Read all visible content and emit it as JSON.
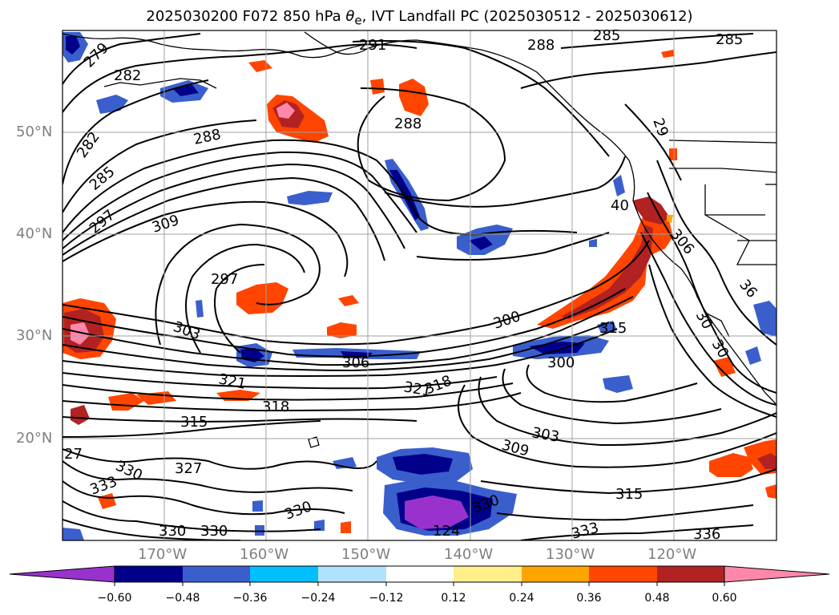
{
  "title": "2025030200 F072 850 hPa θe, IVT Landfall PC (2025030512 - 2025030612)",
  "title_parts": {
    "prefix": "2025030200 F072 850 hPa ",
    "symbol": "θ",
    "subscript": "e",
    "suffix": ", IVT Landfall PC (2025030512 - 2025030612)"
  },
  "map": {
    "projection": "PlateCarree",
    "extent": {
      "lon_min": -180,
      "lon_max": -110,
      "lat_min": 10,
      "lat_max": 60
    },
    "gridlines": true,
    "latitude_labels": [
      "50°N",
      "40°N",
      "30°N",
      "20°N"
    ],
    "longitude_labels": [
      "170°W",
      "160°W",
      "150°W",
      "140°W",
      "130°W",
      "120°W"
    ],
    "contour_labels": [
      "279",
      "282",
      "291",
      "288",
      "285",
      "285",
      "288",
      "282",
      "288",
      "29",
      "285",
      "297",
      "309",
      "40",
      "297",
      "306",
      "303",
      "36",
      "300",
      "315",
      "30",
      "30",
      "306",
      "321",
      "300",
      "321",
      "318",
      "318",
      "315",
      "303",
      "309",
      "27",
      "330",
      "327",
      "333",
      "330",
      "330",
      "124",
      "315",
      "333",
      "336",
      "330",
      "330"
    ]
  },
  "colorbar": {
    "ticks": [
      "−0.60",
      "−0.48",
      "−0.36",
      "−0.24",
      "−0.12",
      "0.12",
      "0.24",
      "0.36",
      "0.48",
      "0.60"
    ],
    "colors": [
      "#9932cc",
      "#00008b",
      "#3a5fcd",
      "#00bfff",
      "#b0e2ff",
      "#ffffff",
      "#fff08a",
      "#ffa500",
      "#ff4500",
      "#b22222",
      "#ff88aa"
    ],
    "extend": "both"
  }
}
